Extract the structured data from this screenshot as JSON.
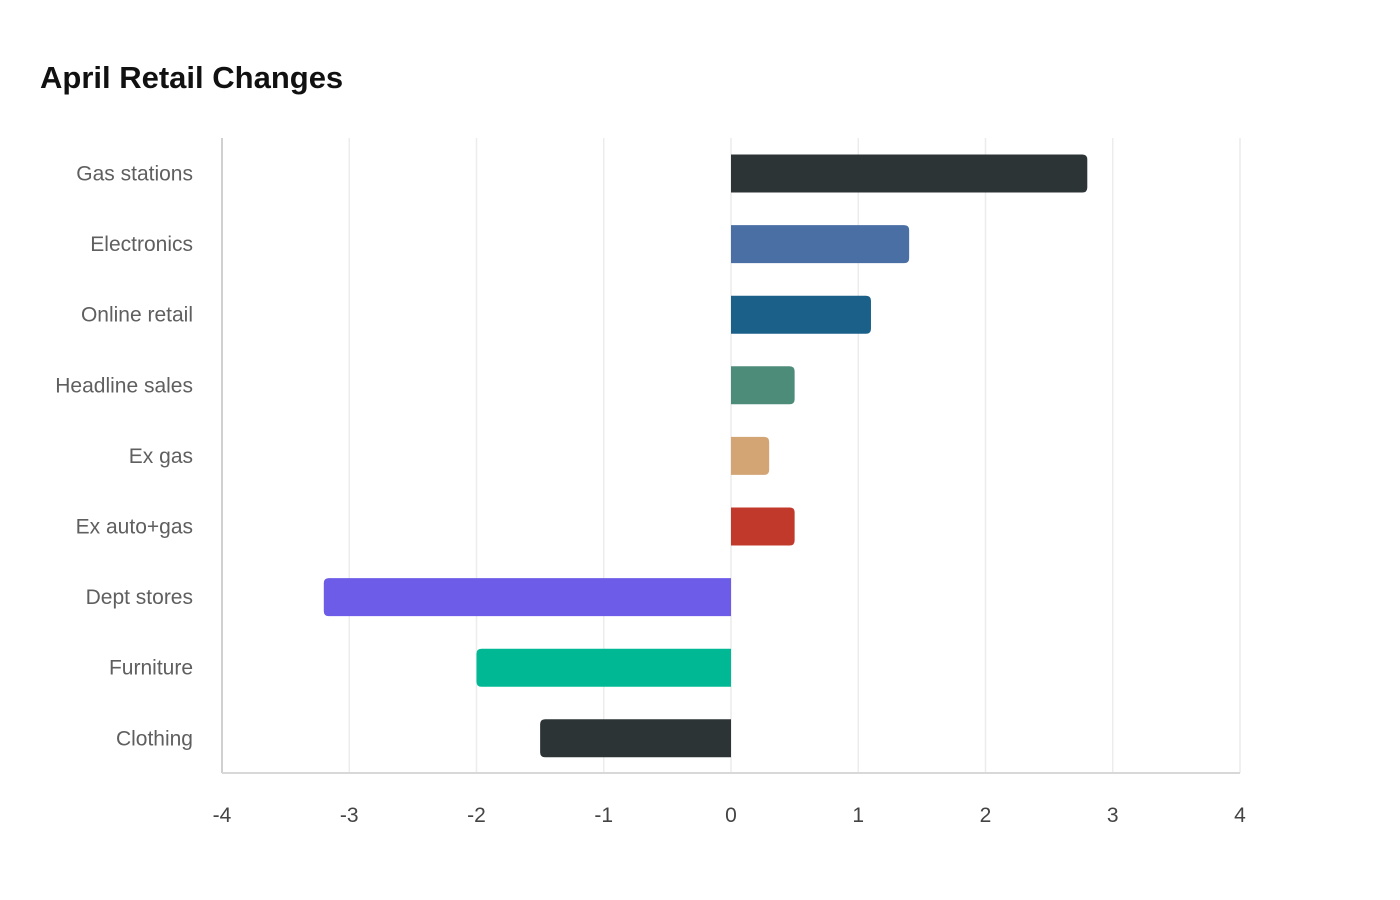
{
  "chart_data": {
    "type": "bar",
    "orientation": "horizontal",
    "title": "April Retail Changes",
    "xlabel": "",
    "ylabel": "",
    "xlim": [
      -4,
      4
    ],
    "xticks": [
      -4,
      -3,
      -2,
      -1,
      0,
      1,
      2,
      3,
      4
    ],
    "grid": "vertical",
    "legend": "none",
    "categories": [
      "Gas stations",
      "Electronics",
      "Online retail",
      "Headline sales",
      "Ex gas",
      "Ex auto+gas",
      "Dept stores",
      "Furniture",
      "Clothing"
    ],
    "values": [
      2.8,
      1.4,
      1.1,
      0.5,
      0.3,
      0.5,
      -3.2,
      -2.0,
      -1.5
    ],
    "colors": [
      "#2d3436",
      "#4a6fa5",
      "#1a6088",
      "#4e8c7a",
      "#d4a574",
      "#c0392b",
      "#6c5ce7",
      "#00b894",
      "#2d3436"
    ]
  }
}
